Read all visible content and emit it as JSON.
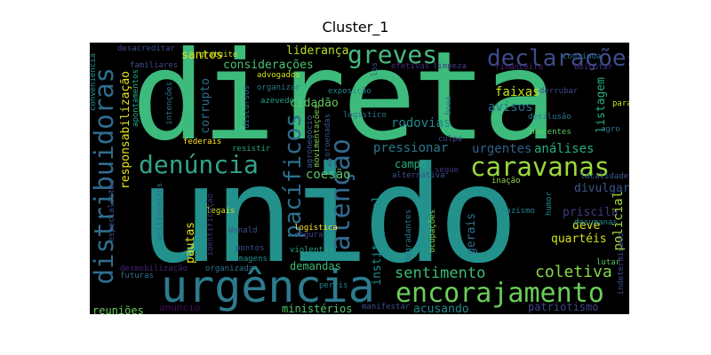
{
  "title": "Cluster_1",
  "words": [
    {
      "text": "direta",
      "color": "#3dbb7c"
    },
    {
      "text": "unido",
      "color": "#23918c"
    },
    {
      "text": "urgência",
      "color": "#2c7b8e"
    },
    {
      "text": "encorajamento",
      "color": "#6ccd5a"
    },
    {
      "text": "caravanas",
      "color": "#9ad93c"
    },
    {
      "text": "denúncia",
      "color": "#33a28a"
    },
    {
      "text": "distribuidoras",
      "color": "#2f6d8e"
    },
    {
      "text": "declarações",
      "color": "#3e4c8a"
    },
    {
      "text": "greves",
      "color": "#48b97f"
    },
    {
      "text": "pacíficos",
      "color": "#2d6f8e"
    },
    {
      "text": "atenção",
      "color": "#316a8e"
    },
    {
      "text": "sentimento",
      "color": "#3bbb75"
    },
    {
      "text": "coletiva",
      "color": "#8bd646"
    },
    {
      "text": "responsabilização",
      "color": "#e5e419"
    },
    {
      "text": "liderança",
      "color": "#b8de29"
    },
    {
      "text": "santos",
      "color": "#dde318"
    },
    {
      "text": "considerações",
      "color": "#4ac16d"
    },
    {
      "text": "corrupto",
      "color": "#2e6e8e"
    },
    {
      "text": "pautas",
      "color": "#e2e418"
    },
    {
      "text": "coesão",
      "color": "#56c667"
    },
    {
      "text": "cidadão",
      "color": "#60ca60"
    },
    {
      "text": "rodovias",
      "color": "#23898e"
    },
    {
      "text": "faixas",
      "color": "#c5e021"
    },
    {
      "text": "avisos",
      "color": "#2c718e"
    },
    {
      "text": "listagem",
      "color": "#25ab82"
    },
    {
      "text": "pressionar",
      "color": "#2a788e"
    },
    {
      "text": "urgentes",
      "color": "#33628d"
    },
    {
      "text": "análises",
      "color": "#28ae80"
    },
    {
      "text": "campo",
      "color": "#28ae80"
    },
    {
      "text": "divulgar",
      "color": "#39568c"
    },
    {
      "text": "priscila",
      "color": "#443983"
    },
    {
      "text": "policial",
      "color": "#a8db34"
    },
    {
      "text": "deve",
      "color": "#dde318"
    },
    {
      "text": "quartéis",
      "color": "#d2e21b"
    },
    {
      "text": "gerais",
      "color": "#2e6e8e"
    },
    {
      "text": "institucional",
      "color": "#228d8d"
    },
    {
      "text": "demandas",
      "color": "#3aba76"
    },
    {
      "text": "ministérios",
      "color": "#52c569"
    },
    {
      "text": "reuniões",
      "color": "#6ccd5a"
    },
    {
      "text": "patriotismo",
      "color": "#414487"
    },
    {
      "text": "acusando",
      "color": "#23888e"
    },
    {
      "text": "anúncio",
      "color": "#460b5e"
    },
    {
      "text": "manifestar",
      "color": "#3b518b"
    },
    {
      "text": "desacreditar",
      "color": "#3e4989"
    },
    {
      "text": "gratuito",
      "color": "#cae11f"
    },
    {
      "text": "advogados",
      "color": "#d2e21b"
    },
    {
      "text": "organizar",
      "color": "#2a788e"
    },
    {
      "text": "exposição",
      "color": "#25848e"
    },
    {
      "text": "azevedo",
      "color": "#20a386"
    },
    {
      "text": "logístico",
      "color": "#2c728e"
    },
    {
      "text": "familiares",
      "color": "#3d4d8a"
    },
    {
      "text": "conveniência",
      "color": "#1f948c"
    },
    {
      "text": "apontamentos",
      "color": "#26ad81"
    },
    {
      "text": "intenções",
      "color": "#2c728e"
    },
    {
      "text": "discursos",
      "color": "#2d708e"
    },
    {
      "text": "pontos",
      "color": "#3d4e8a"
    },
    {
      "text": "imagens",
      "color": "#21918c"
    },
    {
      "text": "legais",
      "color": "#d8e219"
    },
    {
      "text": "donald",
      "color": "#3b528b"
    },
    {
      "text": "logística",
      "color": "#fde725"
    },
    {
      "text": "segura",
      "color": "#414487"
    },
    {
      "text": "violentas",
      "color": "#21a685"
    },
    {
      "text": "identificação",
      "color": "#46327e"
    },
    {
      "text": "desmobilização",
      "color": "#482475"
    },
    {
      "text": "futuras",
      "color": "#2c728e"
    },
    {
      "text": "organizada",
      "color": "#2c728e"
    },
    {
      "text": "federais",
      "color": "#fde725"
    },
    {
      "text": "resistir",
      "color": "#22a884"
    },
    {
      "text": "prisioneiros",
      "color": "#31688e"
    },
    {
      "text": "especialistas",
      "color": "#3b528b"
    },
    {
      "text": "movimentações",
      "color": "#7ad151"
    },
    {
      "text": "coroenadas",
      "color": "#3b528b"
    },
    {
      "text": "agronegócio",
      "color": "#355f8d"
    },
    {
      "text": "alternativa",
      "color": "#3b528b"
    },
    {
      "text": "culpa",
      "color": "#3f4788"
    },
    {
      "text": "segue",
      "color": "#44397f"
    },
    {
      "text": "boas",
      "color": "#2a778e"
    },
    {
      "text": "los",
      "color": "#3b528b"
    },
    {
      "text": "efetivas",
      "color": "#472d7b"
    },
    {
      "text": "limpeza",
      "color": "#433e85"
    },
    {
      "text": "financeiro",
      "color": "#482878"
    },
    {
      "text": "contínua",
      "color": "#2c728e"
    },
    {
      "text": "boicotar",
      "color": "#46327e"
    },
    {
      "text": "derrubar",
      "color": "#3f4788"
    },
    {
      "text": "desilusão",
      "color": "#2a788e"
    },
    {
      "text": "inocentes",
      "color": "#63cb5f"
    },
    {
      "text": "parar",
      "color": "#d0e11c"
    },
    {
      "text": "agro",
      "color": "#2c728e"
    },
    {
      "text": "inação",
      "color": "#8fd744"
    },
    {
      "text": "localidades",
      "color": "#355f8d"
    },
    {
      "text": "desumanas",
      "color": "#23898e"
    },
    {
      "text": "nazismo",
      "color": "#26828e"
    },
    {
      "text": "humor",
      "color": "#238a8d"
    },
    {
      "text": "degradantes",
      "color": "#2a778e"
    },
    {
      "text": "ocupações",
      "color": "#7fd34e"
    },
    {
      "text": "lutar",
      "color": "#5ec962"
    },
    {
      "text": "indeterminado",
      "color": "#3e4989"
    },
    {
      "text": "perfis",
      "color": "#26828e"
    }
  ]
}
